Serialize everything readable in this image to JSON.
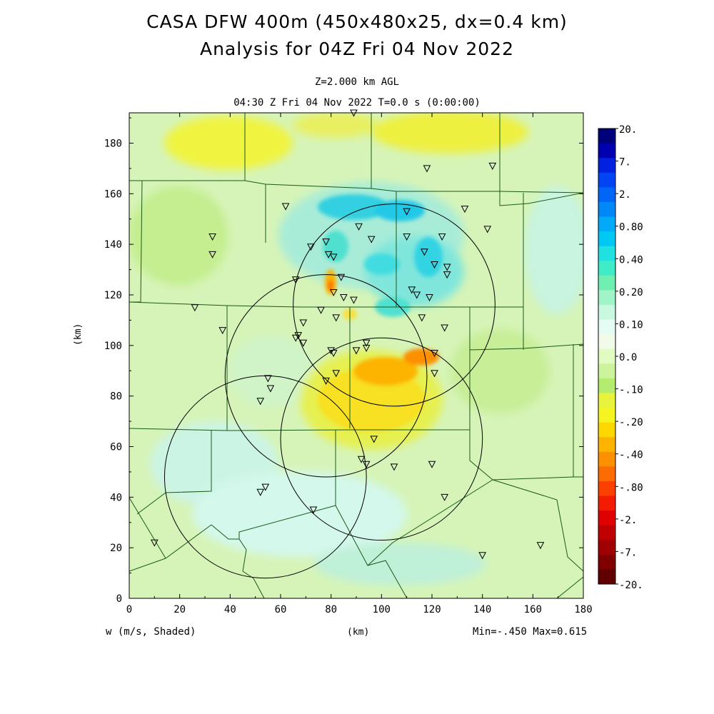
{
  "title": {
    "line1": "CASA DFW 400m (450x480x25, dx=0.4 km)",
    "line2": "Analysis for 04Z Fri 04 Nov 2022"
  },
  "subtitle": {
    "level": "Z=2.000 km AGL",
    "time": "04:30 Z Fri 04 Nov 2022    T=0.0 s (0:00:00)"
  },
  "axes": {
    "xlabel": "(km)",
    "ylabel": "(km)",
    "xlim": [
      0,
      180
    ],
    "ylim": [
      0,
      192
    ],
    "xticks": [
      "0",
      "20",
      "40",
      "60",
      "80",
      "100",
      "120",
      "140",
      "160",
      "180"
    ],
    "yticks": [
      "0",
      "20",
      "40",
      "60",
      "80",
      "100",
      "120",
      "140",
      "160",
      "180"
    ]
  },
  "footer": {
    "variable": "w (m/s, Shaded)",
    "xunit": "(km)",
    "minmax": "Min=-.450 Max=0.615"
  },
  "colorbar": {
    "labels": [
      "20.",
      "7.",
      "2.",
      "0.80",
      "0.40",
      "0.20",
      "0.10",
      "0.0",
      "-.10",
      "-.20",
      "-.40",
      "-.80",
      "-2.",
      "-7.",
      "-20."
    ],
    "colors": [
      "#00007a",
      "#0000b0",
      "#0022e0",
      "#0044f4",
      "#0066f8",
      "#0088f8",
      "#00aaf8",
      "#00c8f4",
      "#20e0e0",
      "#40ecc8",
      "#70f0b0",
      "#a0f4c8",
      "#c8f8e0",
      "#e4fcf4",
      "#f0fce8",
      "#e0fcc0",
      "#ccf49c",
      "#b4ec70",
      "#e8f43c",
      "#f4f420",
      "#fcd800",
      "#fcb400",
      "#fc9000",
      "#fc6c00",
      "#fc4000",
      "#f41c00",
      "#e00000",
      "#c00000",
      "#a00000",
      "#800000",
      "#600000"
    ]
  },
  "colors": {
    "background": "#d6f4b8",
    "updraft": "#20d8d8",
    "downdraft": "#fcb400",
    "boundaries": "#1a5a1a"
  },
  "chart_data": {
    "type": "heatmap",
    "field": "w (m/s)",
    "min": -0.45,
    "max": 0.615,
    "radar_range_rings": [
      {
        "center": [
          105,
          116
        ],
        "radius": 40
      },
      {
        "center": [
          78,
          88
        ],
        "radius": 40
      },
      {
        "center": [
          100,
          63
        ],
        "radius": 40
      },
      {
        "center": [
          54,
          48
        ],
        "radius": 40
      }
    ],
    "stations": [
      [
        89,
        192
      ],
      [
        118,
        170
      ],
      [
        144,
        171
      ],
      [
        133,
        154
      ],
      [
        110,
        153
      ],
      [
        142,
        146
      ],
      [
        62,
        155
      ],
      [
        33,
        143
      ],
      [
        33,
        136
      ],
      [
        78,
        141
      ],
      [
        72,
        139
      ],
      [
        91,
        147
      ],
      [
        96,
        142
      ],
      [
        110,
        143
      ],
      [
        124,
        143
      ],
      [
        117,
        137
      ],
      [
        121,
        132
      ],
      [
        126,
        131
      ],
      [
        126,
        128
      ],
      [
        79,
        136
      ],
      [
        81,
        135
      ],
      [
        66,
        126
      ],
      [
        84,
        127
      ],
      [
        81,
        121
      ],
      [
        85,
        119
      ],
      [
        89,
        118
      ],
      [
        112,
        122
      ],
      [
        114,
        120
      ],
      [
        119,
        119
      ],
      [
        26,
        115
      ],
      [
        37,
        106
      ],
      [
        76,
        114
      ],
      [
        82,
        111
      ],
      [
        116,
        111
      ],
      [
        125,
        107
      ],
      [
        69,
        109
      ],
      [
        67,
        104
      ],
      [
        66,
        103
      ],
      [
        69,
        101
      ],
      [
        94,
        101
      ],
      [
        94,
        99
      ],
      [
        80,
        98
      ],
      [
        81,
        97
      ],
      [
        90,
        98
      ],
      [
        121,
        97
      ],
      [
        121,
        89
      ],
      [
        82,
        89
      ],
      [
        78,
        86
      ],
      [
        55,
        87
      ],
      [
        56,
        83
      ],
      [
        52,
        78
      ],
      [
        97,
        63
      ],
      [
        92,
        55
      ],
      [
        94,
        53
      ],
      [
        105,
        52
      ],
      [
        120,
        53
      ],
      [
        54,
        44
      ],
      [
        52,
        42
      ],
      [
        125,
        40
      ],
      [
        73,
        35
      ],
      [
        10,
        22
      ],
      [
        140,
        17
      ],
      [
        163,
        21
      ]
    ]
  }
}
